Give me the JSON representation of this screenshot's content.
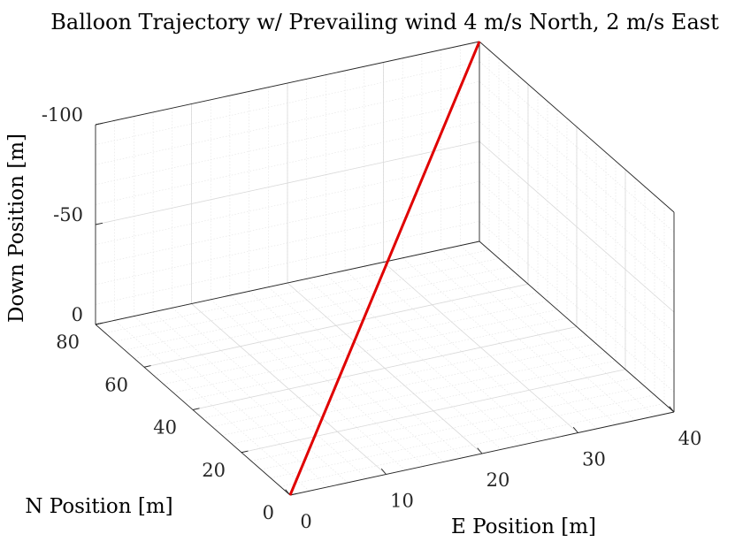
{
  "chart_data": {
    "type": "line3d",
    "title": "Balloon Trajectory w/ Prevailing wind 4 m/s North, 2 m/s East",
    "xlabel": "E Position [m]",
    "ylabel": "N Position [m]",
    "zlabel": "Down Position [m]",
    "xlim": [
      0,
      40
    ],
    "ylim": [
      0,
      80
    ],
    "zlim": [
      -100,
      0
    ],
    "z_reversed": true,
    "xticks": [
      0,
      10,
      20,
      30,
      40
    ],
    "yticks": [
      0,
      20,
      40,
      60,
      80
    ],
    "zticks": [
      -100,
      -50,
      0
    ],
    "grid": true,
    "minor_grid": true,
    "series": [
      {
        "color": "#e00000",
        "x": [
          0,
          40
        ],
        "y": [
          0,
          80
        ],
        "z": [
          0,
          -100
        ]
      }
    ]
  }
}
